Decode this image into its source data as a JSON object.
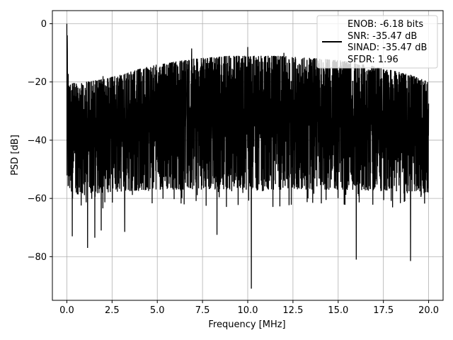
{
  "chart_data": {
    "type": "line",
    "xlabel": "Frequency [MHz]",
    "ylabel": "PSD [dB]",
    "xlim": [
      -0.8,
      20.8
    ],
    "ylim": [
      -95,
      4.5
    ],
    "x_ticks": [
      0.0,
      2.5,
      5.0,
      7.5,
      10.0,
      12.5,
      15.0,
      17.5,
      20.0
    ],
    "x_tick_labels": [
      "0.0",
      "2.5",
      "5.0",
      "7.5",
      "10.0",
      "12.5",
      "15.0",
      "17.5",
      "20.0"
    ],
    "y_ticks": [
      0,
      -20,
      -40,
      -60,
      -80
    ],
    "y_tick_labels": [
      "0",
      "−20",
      "−40",
      "−60",
      "−80"
    ],
    "grid": true,
    "legend_position": "top-right",
    "legend_entries": [
      "ENOB: -6.18 bits",
      "SNR: -35.47 dB",
      "SINAD: -35.47 dB",
      "SFDR: 1.96"
    ],
    "series": [
      {
        "color": "#000000",
        "x_range": [
          0.0,
          20.0
        ],
        "upper_envelope": {
          "x": [
            0.0,
            0.1,
            0.5,
            1.0,
            2.0,
            3.0,
            4.0,
            5.0,
            6.0,
            7.0,
            8.0,
            9.0,
            10.0,
            11.0,
            12.0,
            13.0,
            14.0,
            15.0,
            16.0,
            17.0,
            18.0,
            19.0,
            20.0
          ],
          "y": [
            -4,
            -20,
            -20.5,
            -20,
            -19,
            -17.5,
            -15.5,
            -14,
            -13,
            -12,
            -11.5,
            -11,
            -11,
            -11,
            -11,
            -11.5,
            -12,
            -12.5,
            -13.5,
            -14.5,
            -16,
            -17.5,
            -20
          ]
        },
        "lower_envelope": {
          "x": [
            0.0,
            1.0,
            2.0,
            5.0,
            10.0,
            15.0,
            20.0
          ],
          "y": [
            -58,
            -59,
            -58,
            -57,
            -57,
            -57,
            -58
          ]
        },
        "peaks": [
          {
            "x": 0.0,
            "y": 0
          },
          {
            "x": 0.02,
            "y": -4
          },
          {
            "x": 2.0,
            "y": -18
          },
          {
            "x": 6.9,
            "y": -8.5
          },
          {
            "x": 10.0,
            "y": -8
          },
          {
            "x": 12.0,
            "y": -10
          }
        ],
        "dips": [
          {
            "x": 0.3,
            "y": -73
          },
          {
            "x": 1.15,
            "y": -77
          },
          {
            "x": 1.55,
            "y": -73.5
          },
          {
            "x": 1.9,
            "y": -71
          },
          {
            "x": 3.2,
            "y": -71.5
          },
          {
            "x": 8.3,
            "y": -72.5
          },
          {
            "x": 10.2,
            "y": -91
          },
          {
            "x": 16.0,
            "y": -81
          },
          {
            "x": 19.0,
            "y": -81.5
          }
        ]
      }
    ]
  }
}
